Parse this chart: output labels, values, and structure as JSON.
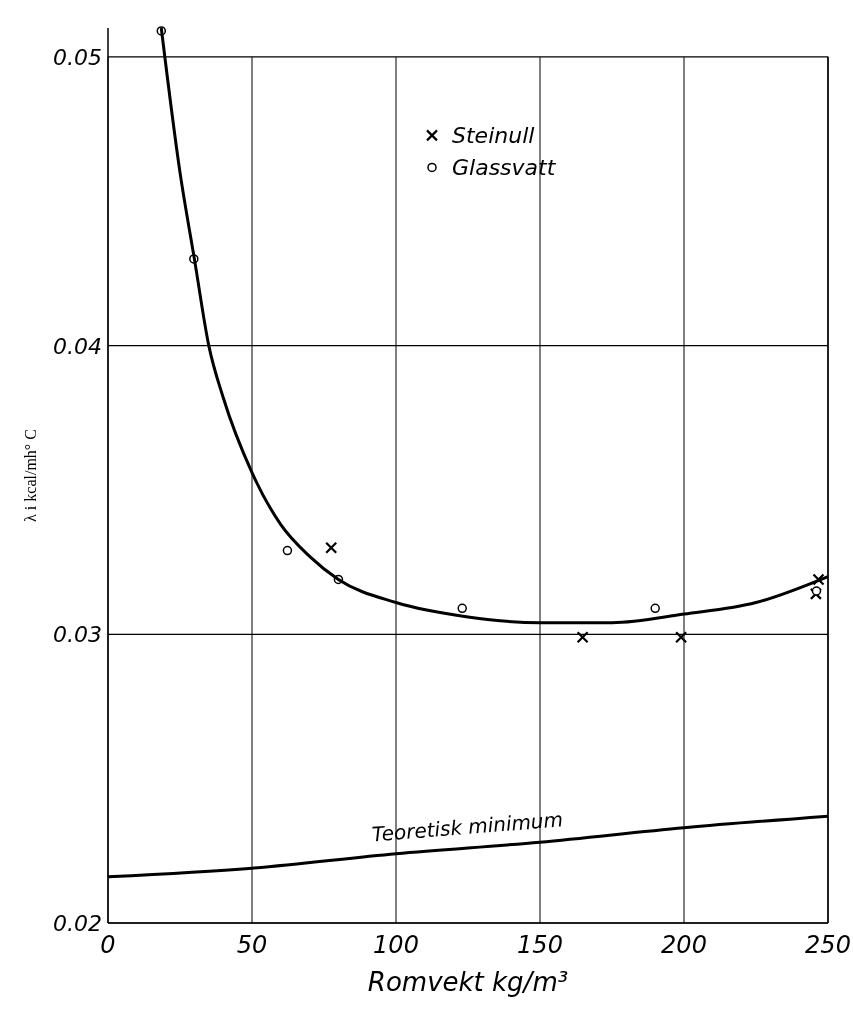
{
  "chart_data": {
    "type": "scatter",
    "xlabel": "Romvekt kg/m³",
    "ylabel": "λ i kcal/mh° C",
    "xlim": [
      0,
      250
    ],
    "ylim": [
      0.02,
      0.051
    ],
    "xticks": [
      0,
      50,
      100,
      150,
      200,
      250
    ],
    "yticks": [
      0.02,
      0.03,
      0.04,
      0.05
    ],
    "grid": true,
    "legend": "top right",
    "series": [
      {
        "name": "Steinull",
        "marker": "cross",
        "color": "#000000",
        "x": [
          77.5,
          164.8,
          199,
          246.7,
          245.8
        ],
        "values": [
          0.033,
          0.0299,
          0.0299,
          0.0319,
          0.0314
        ]
      },
      {
        "name": "Glassvatt",
        "marker": "circle",
        "color": "#000000",
        "x": [
          18.5,
          29.8,
          62.3,
          80,
          123,
          190,
          246
        ],
        "values": [
          0.0509,
          0.043,
          0.0329,
          0.0319,
          0.0309,
          0.0309,
          0.0315
        ]
      },
      {
        "type": "line",
        "marker": "none",
        "color": "#000000",
        "x": [
          18.5,
          25,
          30,
          35,
          40,
          50,
          60,
          70,
          80,
          100,
          125,
          150,
          175,
          200,
          225,
          250
        ],
        "values": [
          0.051,
          0.046,
          0.043,
          0.04,
          0.0382,
          0.0356,
          0.0338,
          0.0327,
          0.0319,
          0.0311,
          0.0306,
          0.0304,
          0.0304,
          0.0307,
          0.0311,
          0.032
        ]
      },
      {
        "name": "Teoretisk minimum",
        "type": "line",
        "marker": "none",
        "color": "#000000",
        "x": [
          0,
          50,
          100,
          150,
          200,
          250
        ],
        "values": [
          0.0216,
          0.0219,
          0.0224,
          0.0228,
          0.0233,
          0.0237
        ]
      }
    ]
  }
}
